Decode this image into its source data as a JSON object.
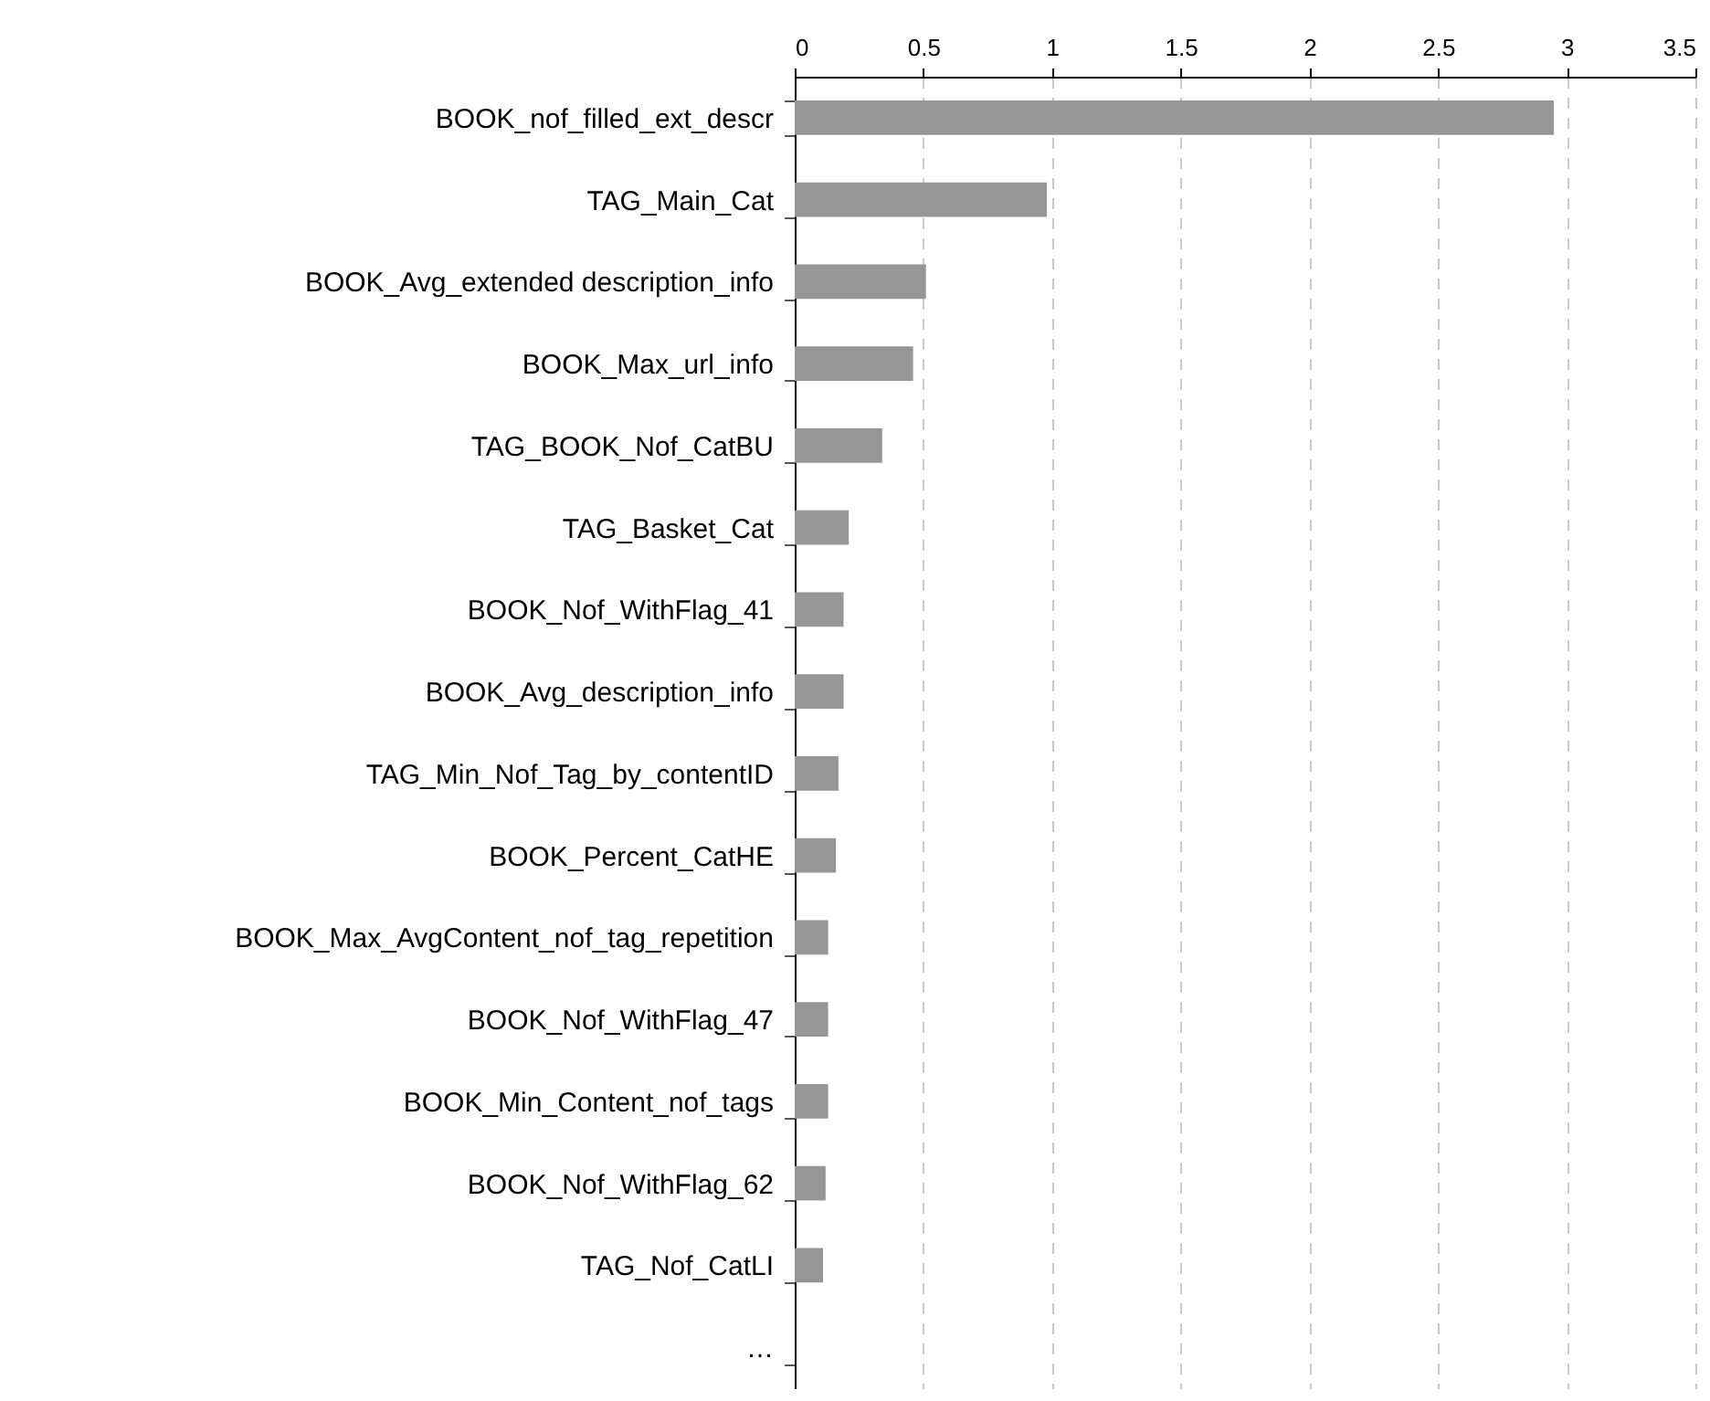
{
  "chart_data": {
    "type": "bar",
    "orientation": "horizontal",
    "categories": [
      "BOOK_nof_filled_ext_descr",
      "TAG_Main_Cat",
      "BOOK_Avg_extended description_info",
      "BOOK_Max_url_info",
      "TAG_BOOK_Nof_CatBU",
      "TAG_Basket_Cat",
      "BOOK_Nof_WithFlag_41",
      "BOOK_Avg_description_info",
      "TAG_Min_Nof_Tag_by_contentID",
      "BOOK_Percent_CatHE",
      "BOOK_Max_AvgContent_nof_tag_repetition",
      "BOOK_Nof_WithFlag_47",
      "BOOK_Min_Content_nof_tags",
      "BOOK_Nof_WithFlag_62",
      "TAG_Nof_CatLI",
      "…"
    ],
    "values": [
      2.95,
      0.98,
      0.51,
      0.46,
      0.34,
      0.21,
      0.19,
      0.19,
      0.17,
      0.16,
      0.13,
      0.13,
      0.13,
      0.12,
      0.11,
      null
    ],
    "color": "#969696",
    "xlim": [
      0,
      3.5
    ],
    "xticks": [
      0,
      0.5,
      1,
      1.5,
      2,
      2.5,
      3,
      3.5
    ],
    "grid": "x"
  }
}
